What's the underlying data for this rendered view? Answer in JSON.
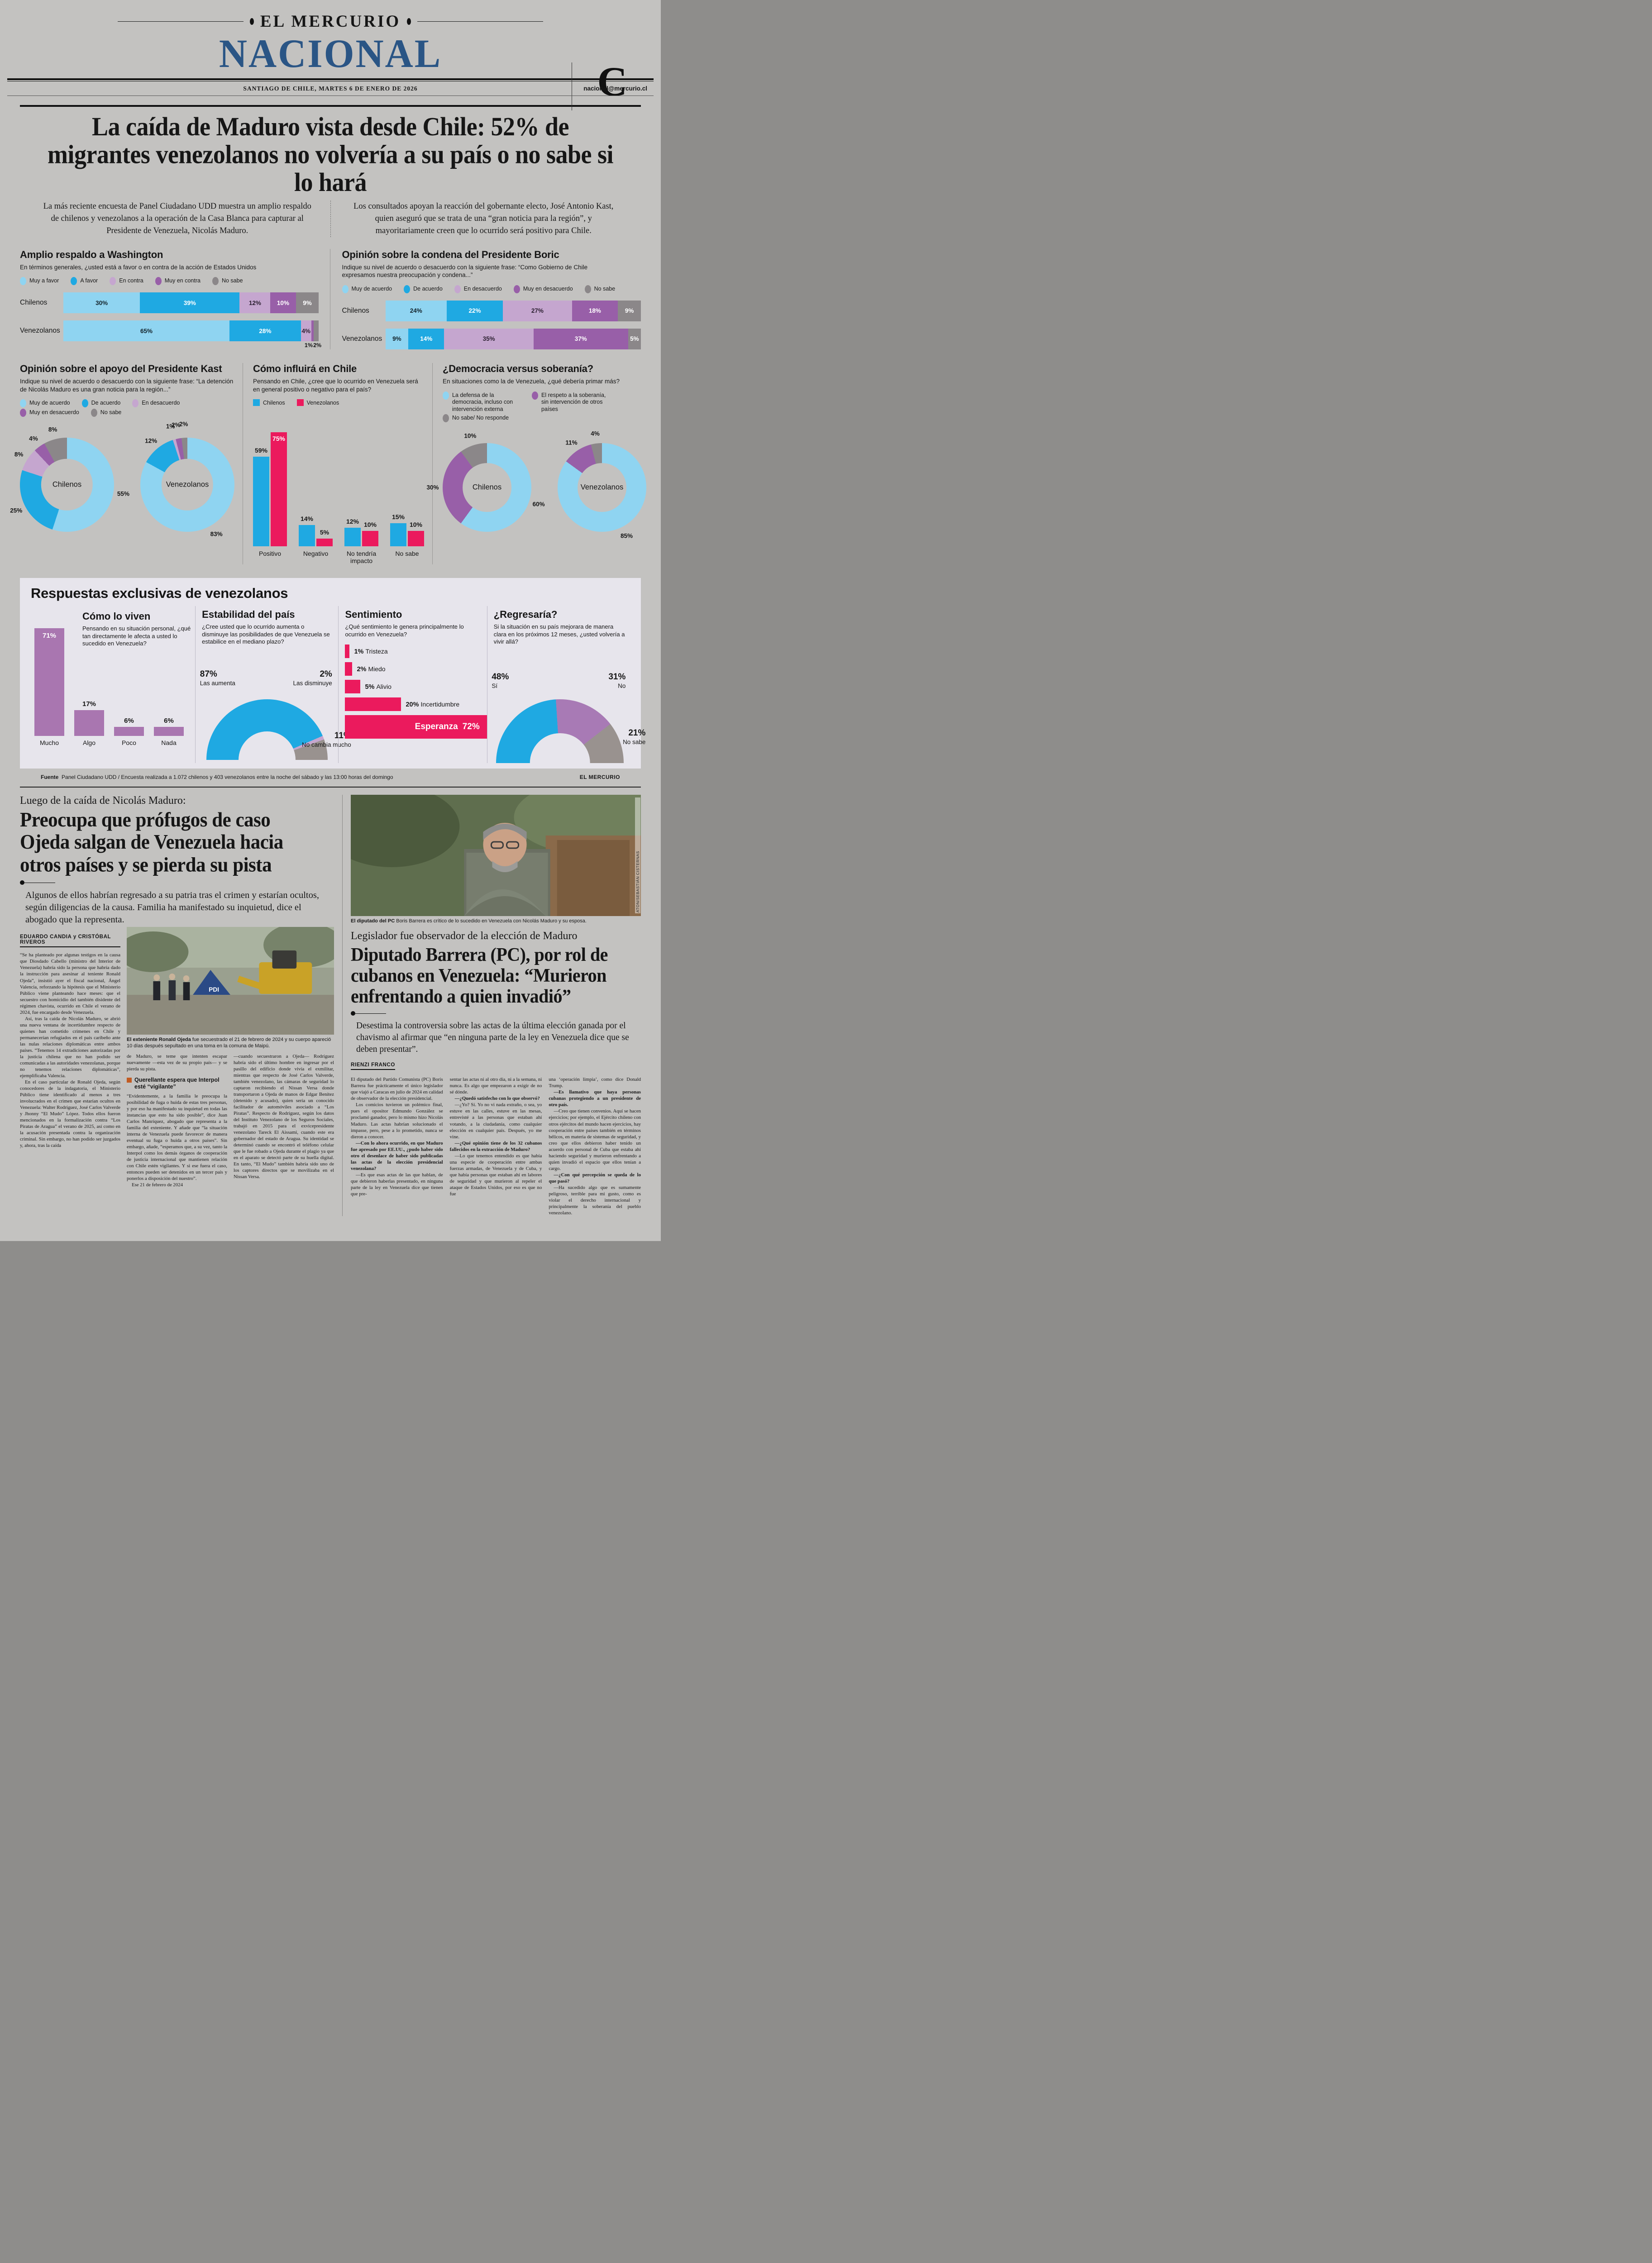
{
  "masthead": {
    "brand": "EL MERCURIO",
    "section": "NACIONAL",
    "edition_letter": "C",
    "dateline": "SANTIAGO DE CHILE, MARTES 6 DE ENERO DE 2026",
    "email": "nacional@mercurio.cl"
  },
  "colors": {
    "section_blue": "#2a5585",
    "blue_light": "#8fd4f1",
    "blue": "#1fa9e2",
    "lavender": "#c5a6cf",
    "purple": "#985fa8",
    "gray": "#8b8789",
    "pink": "#eb1a5d",
    "purple_bar": "#a976b0",
    "purple_gauge": "#a87ab5",
    "gray_gauge": "#99928f",
    "panel_bg": "#e7e5ec",
    "orange_bullet": "#c25b22"
  },
  "lead": {
    "headline": "La caída de Maduro vista desde Chile: 52% de migrantes venezolanos no volvería a su país o no sabe si lo hará",
    "deck_left": "La más reciente encuesta de Panel Ciudadano UDD muestra un amplio respaldo de chilenos y venezolanos a la operación de la Casa Blanca para capturar al Presidente de Venezuela, Nicolás Maduro.",
    "deck_right": "Los consultados apoyan la reacción del gobernante electo, José Antonio Kast, quien aseguró que se trata de una “gran noticia para la región”, y mayoritariamente creen que lo ocurrido será positivo para Chile."
  },
  "chart_data": [
    {
      "id": "washington",
      "type": "bar",
      "subtype": "stacked-horizontal",
      "title": "Amplio respaldo a Washington",
      "subtitle": "En términos generales, ¿usted está a favor o en contra de la acción de Estados Unidos",
      "legend": [
        "Muy a favor",
        "A favor",
        "En contra",
        "Muy en contra",
        "No sabe"
      ],
      "categories": [
        "Chilenos",
        "Venezolanos"
      ],
      "series": [
        {
          "name": "Chilenos",
          "values": [
            30,
            39,
            12,
            10,
            9
          ]
        },
        {
          "name": "Venezolanos",
          "values": [
            65,
            28,
            4,
            1,
            2
          ]
        }
      ]
    },
    {
      "id": "boric",
      "type": "bar",
      "subtype": "stacked-horizontal",
      "title": "Opinión sobre la condena del Presidente Boric",
      "subtitle": "Indique su nivel de acuerdo o desacuerdo con la siguiente frase: “Como Gobierno de Chile expresamos nuestra preocupación y condena...”",
      "legend": [
        "Muy de acuerdo",
        "De acuerdo",
        "En desacuerdo",
        "Muy en desacuerdo",
        "No sabe"
      ],
      "categories": [
        "Chilenos",
        "Venezolanos"
      ],
      "series": [
        {
          "name": "Chilenos",
          "values": [
            24,
            22,
            27,
            18,
            9
          ]
        },
        {
          "name": "Venezolanos",
          "values": [
            9,
            14,
            35,
            37,
            5
          ]
        }
      ]
    },
    {
      "id": "kast",
      "type": "pie",
      "subtype": "donut",
      "title": "Opinión sobre el apoyo del Presidente Kast",
      "subtitle": "Indique su nivel de acuerdo o desacuerdo con la siguiente frase: “La detención de Nicolás Maduro es una gran noticia para la región...”",
      "legend": [
        "Muy de acuerdo",
        "De acuerdo",
        "En desacuerdo",
        "Muy en desacuerdo",
        "No sabe"
      ],
      "series": [
        {
          "name": "Chilenos",
          "values": [
            55,
            25,
            8,
            4,
            8
          ]
        },
        {
          "name": "Venezolanos",
          "values": [
            83,
            12,
            1,
            2,
            2
          ]
        }
      ]
    },
    {
      "id": "influira",
      "type": "bar",
      "subtype": "grouped-vertical",
      "title": "Cómo influirá en Chile",
      "subtitle": "Pensando en Chile, ¿cree que lo ocurrido en Venezuela será en general positivo o negativo para el país?",
      "legend": [
        "Chilenos",
        "Venezolanos"
      ],
      "categories": [
        "Positivo",
        "Negativo",
        "No tendría impacto",
        "No sabe"
      ],
      "series": [
        {
          "name": "Chilenos",
          "values": [
            59,
            14,
            12,
            15
          ]
        },
        {
          "name": "Venezolanos",
          "values": [
            75,
            5,
            10,
            10
          ]
        }
      ]
    },
    {
      "id": "democracia",
      "type": "pie",
      "subtype": "donut",
      "title": "¿Democracia versus soberanía?",
      "subtitle": "En situaciones como la de Venezuela, ¿qué debería primar más?",
      "legend": [
        "La defensa de la democracia, incluso con intervención externa",
        "El respeto a la soberanía, sin intervención de otros países",
        "No sabe/ No responde"
      ],
      "series": [
        {
          "name": "Chilenos",
          "values": [
            60,
            30,
            10
          ]
        },
        {
          "name": "Venezolanos",
          "values": [
            85,
            11,
            4
          ]
        }
      ]
    },
    {
      "id": "como_lo_viven",
      "type": "bar",
      "subtype": "vertical",
      "title": "Cómo lo viven",
      "subtitle": "Pensando en su situación personal, ¿qué tan directamente le afecta a usted lo sucedido en Venezuela?",
      "categories": [
        "Mucho",
        "Algo",
        "Poco",
        "Nada"
      ],
      "values": [
        71,
        17,
        6,
        6
      ]
    },
    {
      "id": "estabilidad",
      "type": "pie",
      "subtype": "half-donut",
      "title": "Estabilidad del país",
      "subtitle": "¿Cree usted que lo ocurrido aumenta o disminuye las posibilidades de que Venezuela se estabilice en el mediano plazo?",
      "slices": [
        {
          "label": "Las aumenta",
          "value": 87
        },
        {
          "label": "Las disminuye",
          "value": 2
        },
        {
          "label": "No cambia mucho",
          "value": 11
        }
      ]
    },
    {
      "id": "sentimiento",
      "type": "bar",
      "subtype": "horizontal",
      "title": "Sentimiento",
      "subtitle": "¿Qué sentimiento le genera principalmente lo ocurrido en Venezuela?",
      "categories": [
        "Tristeza",
        "Miedo",
        "Alivio",
        "Incertidumbre",
        "Esperanza"
      ],
      "values": [
        1,
        2,
        5,
        20,
        72
      ]
    },
    {
      "id": "regresaria",
      "type": "pie",
      "subtype": "half-donut",
      "title": "¿Regresaría?",
      "subtitle": "Si la situación en su país mejorara de manera clara en los próximos 12 meses, ¿usted volvería a vivir allá?",
      "slices": [
        {
          "label": "Sí",
          "value": 48
        },
        {
          "label": "No",
          "value": 31
        },
        {
          "label": "No sabe",
          "value": 21
        }
      ]
    }
  ],
  "infographic": {
    "exclusive_title": "Respuestas exclusivas de venezolanos",
    "fuente_label": "Fuente",
    "fuente_text": "Panel Ciudadano UDD / Encuesta realizada a 1.072 chilenos y 403 venezolanos entre la noche del sábado y las 13:00 horas del domingo",
    "credit": "EL MERCURIO"
  },
  "article1": {
    "kicker": "Luego de la caída de Nicolás Maduro:",
    "headline": "Preocupa que prófugos de caso Ojeda salgan de Venezuela hacia otros países y se pierda su pista",
    "deck": "Algunos de ellos habrían regresado a su patria tras el crimen y estarían ocultos, según diligencias de la causa. Familia ha manifestado su inquietud, dice el abogado que la representa.",
    "byline": "EDUARDO CANDIA y CRISTÓBAL RIVEROS",
    "photo_caption_lead": "El exteniente Ronald Ojeda",
    "photo_caption_rest": " fue secuestrado el 21 de febrero de 2024 y su cuerpo apareció 10 días después sepultado en una toma en la comuna de Maipú.",
    "col1": [
      {
        "text": "“Se ha planteado por algunas testigos en la causa que Diosdado Cabello (ministro del Interior de Venezuela) habría sido la persona que habría dado la instrucción para asesinar al teniente Ronald Ojeda”, insistió ayer el fiscal nacional, Ángel Valencia, reforzando la hipótesis que el Ministerio Público viene planteando hace meses: que el secuestro con homicidio del también disidente del régimen chavista, ocurrido en Chile el verano de 2024, fue encargado desde Venezuela.",
        "bold": false
      },
      {
        "text": "Así, tras la caída de Nicolás Maduro, se abrió una nueva ventana de incertidumbre respecto de quienes han cometido crímenes en Chile y permanecerían refugiados en el país caribeño ante las nulas relaciones diplomáticas entre ambos países. “Tenemos 14 extradiciones autorizadas por la justicia chilena que no han podido ser comunicadas a las autoridades venezolanas, porque no tenemos relaciones diplomáticas”, ejemplificaba Valencia.",
        "bold": false
      },
      {
        "text": "En el caso particular de Ronald Ojeda, según conocedores de la indagatoria, el Ministerio Público tiene identificado al menos a tres involucrados en el crimen que estarían ocultos en Venezuela: Walter Rodríguez, José Carlos Valverde y Jhonny “El Mudo” López. Todos ellos fueron mencionados en la formalización contra “Los Piratas de Aragua” el verano de 2025, así como en la acusación presentada contra la organización criminal. Sin embargo, no han podido ser juzgados y, ahora, tras la caída",
        "bold": false
      }
    ],
    "col2_before": [
      {
        "text": "de Maduro, se teme que intenten escapar nuevamente —esta vez de su propio país— y se pierda su pista.",
        "bold": false
      }
    ],
    "subhead": "Querellante espera que Interpol esté “vigilante”",
    "col2_after": [
      {
        "text": "“Evidentemente, a la familia le preocupa la posibilidad de fuga o huida de estas tres personas, y por eso ha manifestado su inquietud en todas las instancias que esto ha sido posible”, dice Juan Carlos Manríquez, abogado que representa a la familia del exteniente. Y añade que “la situación interna de Venezuela puede favorecer de manera eventual su fuga o huida a otros países”. Sin embargo, añade, “esperamos que, a su vez, tanto la Interpol como los demás órganos de cooperación de justicia internacional que mantienen relación con Chile estén vigilantes. Y si ese fuera el caso, entonces pueden ser detenidos en un tercer país y ponerlos a disposición del nuestro”.",
        "bold": false
      },
      {
        "text": "Ese 21 de febrero de 2024",
        "bold": false
      }
    ],
    "col3": [
      {
        "text": "—cuando secuestraron a Ojeda— Rodríguez habría sido el último hombre en ingresar por el pasillo del edificio donde vivía el exmilitar, mientras que respecto de José Carlos Valverde, también venezolano, las cámaras de seguridad lo captaron recibiendo el Nissan Versa donde transportaron a Ojeda de manos de Edgar Benítez (detenido y acusado), quien sería un conocido facilitador de automóviles asociado a “Los Piratas”. Respecto de Rodríguez, según los datos del Instituto Venezolano de los Seguros Sociales, trabajó en 2015 para el exvicepresidente venezolano Tareck El Aissami, cuando este era gobernador del estado de Aragua. Su identidad se determinó cuando se encontró el teléfono celular que le fue robado a Ojeda durante el plagio ya que en el aparato se detectó parte de su huella digital. En tanto, “El Mudo” también habría sido uno de los captores directos que se movilizaba en el Nissan Versa.",
        "bold": false
      }
    ]
  },
  "article2": {
    "photo_credit": "ATON/SEBASTIÁN CISTERNAS",
    "photo_caption_lead": "El diputado del PC",
    "photo_caption_rest": " Boris Barrera es crítico de lo sucedido en Venezuela con Nicolás Maduro y su esposa.",
    "kicker": "Legislador fue observador de la elección de Maduro",
    "headline": "Diputado Barrera (PC), por rol de cubanos en Venezuela: “Murieron enfrentando a quien invadió”",
    "deck": "Desestima la controversia sobre las actas de la última elección ganada por el chavismo al afirmar que “en ninguna parte de la ley en Venezuela dice que se deben presentar”.",
    "byline": "RIENZI FRANCO",
    "col1": [
      {
        "text": "El diputado del Partido Comunista (PC) Boris Barrera fue prácticamente el único legislador que viajó a Caracas en julio de 2024 en calidad de observador de la elección presidencial.",
        "bold": false
      },
      {
        "text": "Los comicios tuvieron un polémico final, pues el opositor Edmundo González se proclamó ganador, pero lo mismo hizo Nicolás Maduro. Las actas habrían solucionado el impasse, pero, pese a lo prometido, nunca se dieron a conocer.",
        "bold": false
      },
      {
        "text": "—Con lo ahora ocurrido, en que Maduro fue apresado por EE.UU., ¿pudo haber sido otro el desenlace de haber sido publicadas las actas de la elección presidencial venezolana?",
        "bold": true
      },
      {
        "text": "—Es que esas actas de las que hablan, de que debieron haberlas presentado, en ninguna parte de la ley en Venezuela dice que tienen que pre-",
        "bold": false
      }
    ],
    "col2": [
      {
        "text": "sentar las actas ni al otro día, ni a la semana, ni nunca. Es algo que empezaron a exigir de no sé dónde.",
        "bold": false
      },
      {
        "text": "—¿Quedó satisfecho con lo que observó?",
        "bold": true
      },
      {
        "text": "—¿Yo? Sí. Yo no vi nada extraño, o sea, yo estuve en las calles, estuve en las mesas, entrevisté a las personas que estaban ahí votando, a la ciudadanía, como cualquier elección en cualquier país. Después, yo me vine.",
        "bold": false
      },
      {
        "text": "—¿Qué opinión tiene de los 32 cubanos fallecidos en la extracción de Maduro?",
        "bold": true
      },
      {
        "text": "—Lo que tenemos entendido es que había una especie de cooperación entre ambas fuerzas armadas, de Venezuela y de Cuba, y que había personas que estaban ahí en labores de seguridad y que murieron al repeler el ataque de Estados Unidos, por eso es que no fue",
        "bold": false
      }
    ],
    "col3": [
      {
        "text": "una ‘operación limpia’, como dice Donald Trump.",
        "bold": false
      },
      {
        "text": "—Es llamativo que haya personas cubanas protegiendo a un presidente de otro país.",
        "bold": true
      },
      {
        "text": "—Creo que tienen convenios. Aquí se hacen ejercicios; por ejemplo, el Ejército chileno con otros ejércitos del mundo hacen ejercicios, hay cooperación entre países también en términos bélicos, en materia de sistemas de seguridad, y creo que ellos debieron haber tenido un acuerdo con personal de Cuba que estaba ahí haciendo seguridad y murieron enfrentando a quien invadió el espacio que ellos tenían a cargo.",
        "bold": false
      },
      {
        "text": "—¿Con qué percepción se queda de lo que pasó?",
        "bold": true
      },
      {
        "text": "—Ha sucedido algo que es sumamente peligroso, terrible para mi gusto, como es violar el derecho internacional y principalmente la soberanía del pueblo venezolano.",
        "bold": false
      }
    ]
  }
}
